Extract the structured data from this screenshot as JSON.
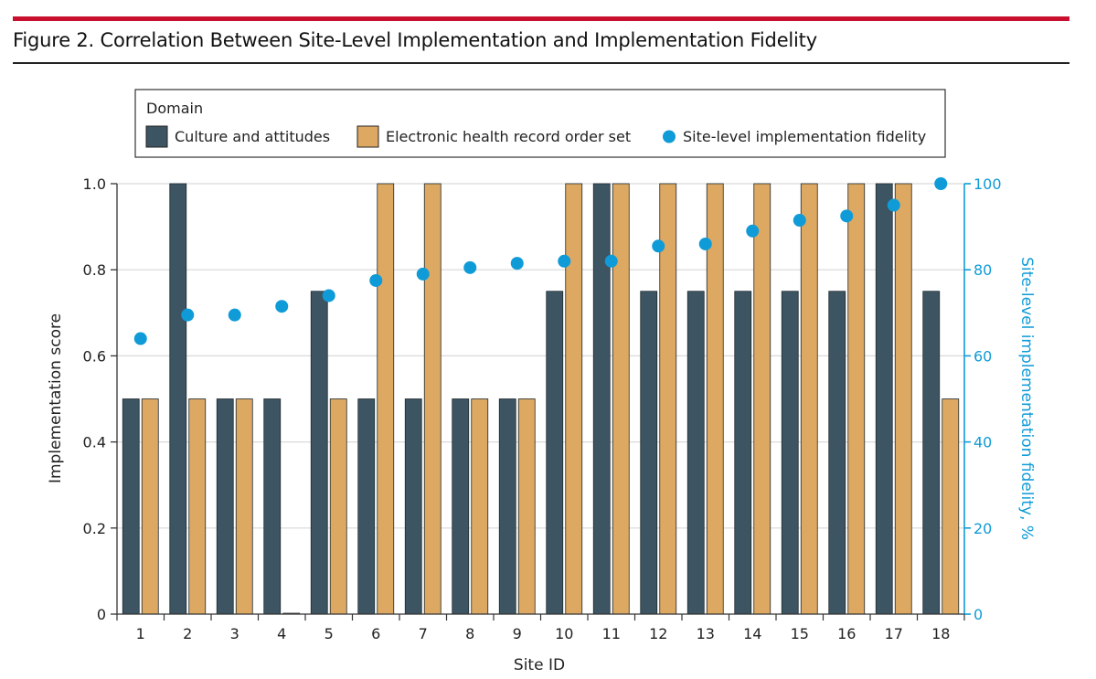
{
  "figure": {
    "title": "Figure 2. Correlation Between Site-Level Implementation and Implementation Fidelity"
  },
  "colors": {
    "culture": "#3d5562",
    "ehr": "#dca862",
    "fidelity": "#0f9bd7",
    "accent_rule": "#c8102e"
  },
  "chart_data": {
    "type": "bar",
    "title": "",
    "xlabel": "Site ID",
    "ylabel": "Implementation score",
    "y2label": "Site-level implementation fidelity, %",
    "categories": [
      "1",
      "2",
      "3",
      "4",
      "5",
      "6",
      "7",
      "8",
      "9",
      "10",
      "11",
      "12",
      "13",
      "14",
      "15",
      "16",
      "17",
      "18"
    ],
    "ylim": [
      0,
      1.0
    ],
    "yticks": [
      0,
      0.2,
      0.4,
      0.6,
      0.8,
      1.0
    ],
    "ytick_labels": [
      "0",
      "0.2",
      "0.4",
      "0.6",
      "0.8",
      "1.0"
    ],
    "y2lim": [
      0,
      100
    ],
    "y2ticks": [
      0,
      20,
      40,
      60,
      80,
      100
    ],
    "grid": "horizontal",
    "legend_title": "Domain",
    "legend_position": "top",
    "series": [
      {
        "name": "Culture and attitudes",
        "kind": "bar",
        "axis": "left",
        "values": [
          0.5,
          1.0,
          0.5,
          0.5,
          0.75,
          0.5,
          0.5,
          0.5,
          0.5,
          0.75,
          1.0,
          0.75,
          0.75,
          0.75,
          0.75,
          0.75,
          1.0,
          0.75
        ]
      },
      {
        "name": "Electronic health record order set",
        "kind": "bar",
        "axis": "left",
        "values": [
          0.5,
          0.5,
          0.5,
          0.0,
          0.5,
          1.0,
          1.0,
          0.5,
          0.5,
          1.0,
          1.0,
          1.0,
          1.0,
          1.0,
          1.0,
          1.0,
          1.0,
          0.5
        ]
      },
      {
        "name": "Site-level implementation fidelity",
        "kind": "scatter",
        "axis": "right",
        "values": [
          64,
          69.5,
          69.5,
          71.5,
          74,
          77.5,
          79,
          80.5,
          81.5,
          82,
          82,
          85.5,
          86,
          89,
          91.5,
          92.5,
          95,
          100
        ]
      }
    ]
  }
}
